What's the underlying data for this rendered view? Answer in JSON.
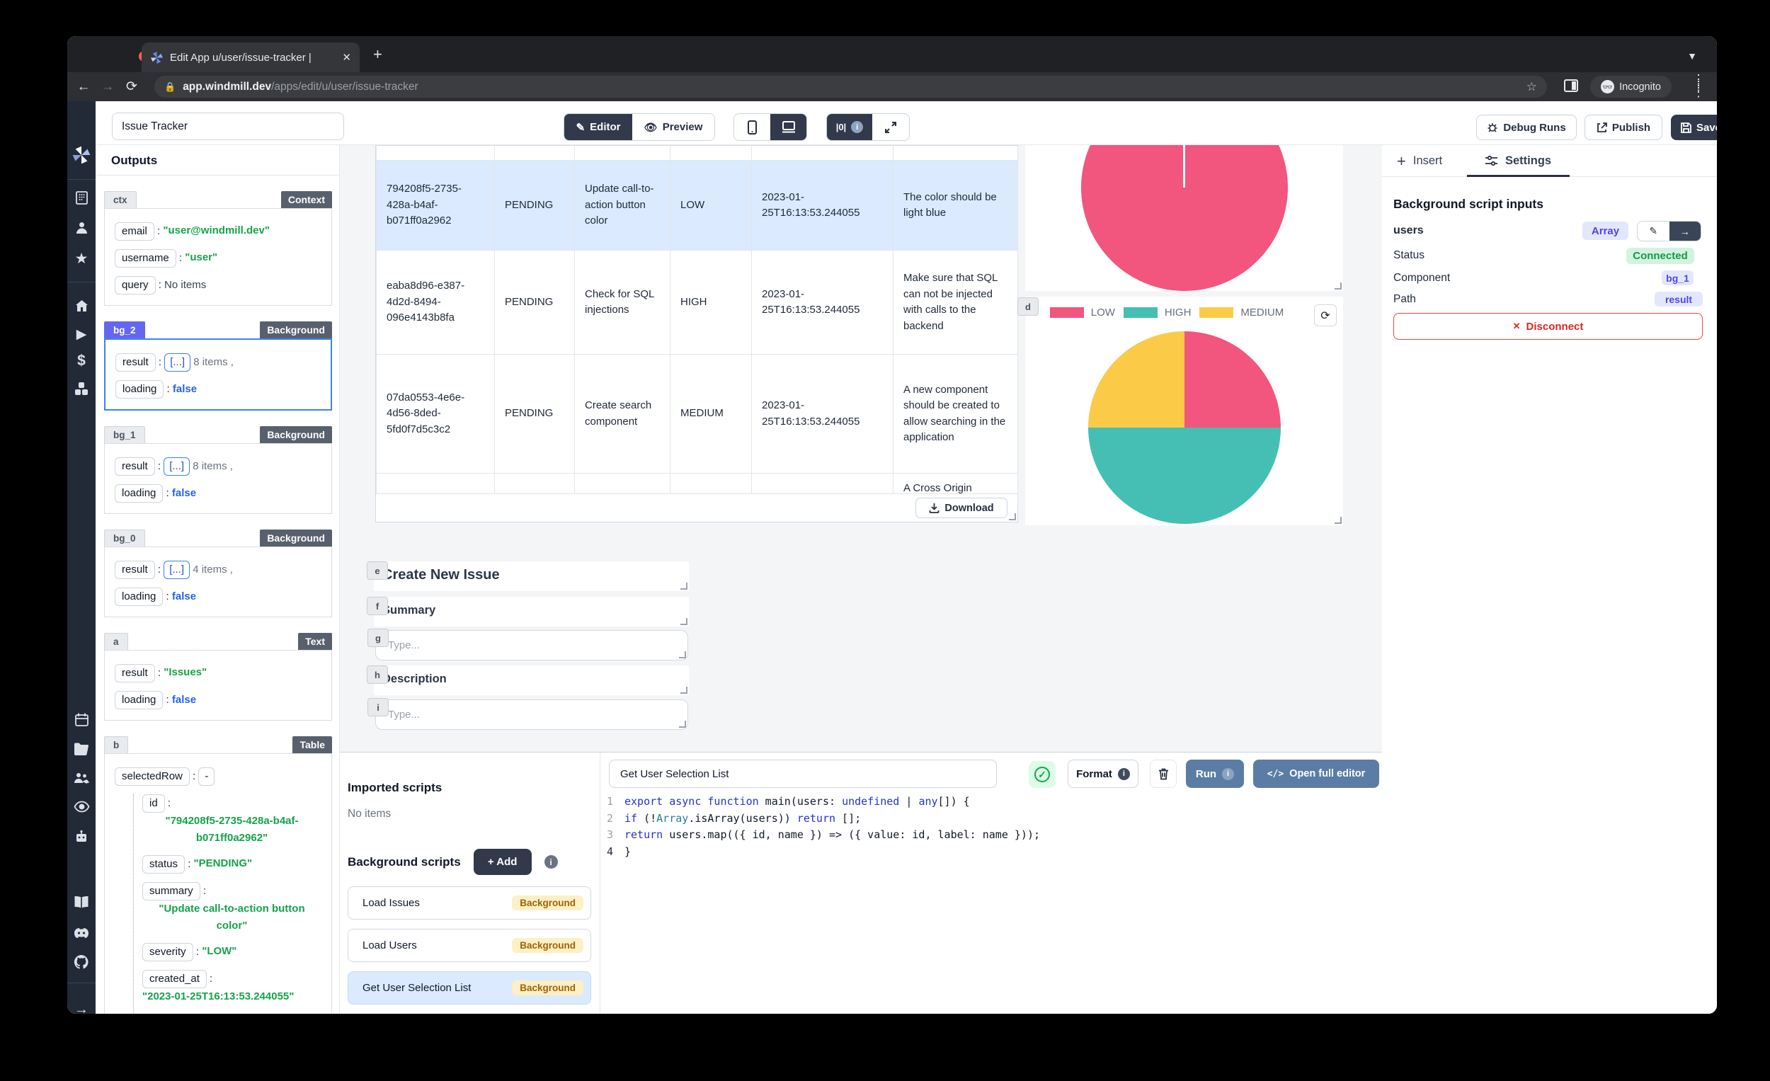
{
  "browser": {
    "tab_title": "Edit App u/user/issue-tracker |",
    "url_host": "app.windmill.dev",
    "url_path": "/apps/edit/u/user/issue-tracker",
    "incognito_label": "Incognito"
  },
  "header": {
    "app_name": "Issue Tracker",
    "editor_label": "Editor",
    "preview_label": "Preview",
    "zero_label": "|0|",
    "debug_runs_label": "Debug Runs",
    "publish_label": "Publish",
    "save_label": "Save"
  },
  "outputs": {
    "title": "Outputs",
    "sections": [
      {
        "id": "ctx",
        "idStyle": "gray",
        "type": "Context",
        "selected": false,
        "rows": [
          {
            "key": "email",
            "kind": "string",
            "value": "\"user@windmill.dev\""
          },
          {
            "key": "username",
            "kind": "string",
            "value": "\"user\""
          },
          {
            "key": "query",
            "kind": "plain",
            "value": "No items"
          }
        ]
      },
      {
        "id": "bg_2",
        "idStyle": "indigo",
        "type": "Background",
        "selected": true,
        "rows": [
          {
            "key": "result",
            "kind": "array",
            "value": "8 items ,"
          },
          {
            "key": "loading",
            "kind": "bool",
            "value": "false"
          }
        ]
      },
      {
        "id": "bg_1",
        "idStyle": "gray",
        "type": "Background",
        "selected": false,
        "rows": [
          {
            "key": "result",
            "kind": "array",
            "value": "8 items ,"
          },
          {
            "key": "loading",
            "kind": "bool",
            "value": "false"
          }
        ]
      },
      {
        "id": "bg_0",
        "idStyle": "gray",
        "type": "Background",
        "selected": false,
        "rows": [
          {
            "key": "result",
            "kind": "array",
            "value": "4 items ,"
          },
          {
            "key": "loading",
            "kind": "bool",
            "value": "false"
          }
        ]
      },
      {
        "id": "a",
        "idStyle": "gray",
        "type": "Text",
        "selected": false,
        "rows": [
          {
            "key": "result",
            "kind": "string",
            "value": "\"Issues\""
          },
          {
            "key": "loading",
            "kind": "bool",
            "value": "false"
          }
        ]
      },
      {
        "id": "b",
        "idStyle": "gray",
        "type": "Table",
        "selected": false,
        "rows": [
          {
            "key": "selectedRow",
            "kind": "dash",
            "value": "-",
            "children": [
              {
                "key": "id",
                "kind": "string",
                "value": "\"794208f5-2735-428a-b4af-b071ff0a2962\""
              },
              {
                "key": "status",
                "kind": "string",
                "value": "\"PENDING\""
              },
              {
                "key": "summary",
                "kind": "string",
                "value": "\"Update call-to-action button color\""
              },
              {
                "key": "severity",
                "kind": "string",
                "value": "\"LOW\""
              },
              {
                "key": "created_at",
                "kind": "string",
                "value": "\"2023-01-25T16:13:53.244055\""
              },
              {
                "key": "description",
                "kind": "string",
                "value": "\"The color should be light blue\""
              }
            ]
          },
          {
            "key": "loading",
            "kind": "bool",
            "value": "false"
          }
        ]
      }
    ]
  },
  "issues_table": {
    "rows": [
      {
        "id": "794208f5-2735-428a-b4af-b071ff0a2962",
        "status": "PENDING",
        "summary": "Update call-to-action button color",
        "severity": "LOW",
        "created_at": "2023-01-25T16:13:53.244055",
        "description": "The color should be light blue",
        "selected": true
      },
      {
        "id": "eaba8d96-e387-4d2d-8494-096e4143b8fa",
        "status": "PENDING",
        "summary": "Check for SQL injections",
        "severity": "HIGH",
        "created_at": "2023-01-25T16:13:53.244055",
        "description": "Make sure that SQL can not be injected with calls to the backend",
        "selected": false
      },
      {
        "id": "07da0553-4e6e-4d56-8ded-5fd0f7d5c3c2",
        "status": "PENDING",
        "summary": "Create search component",
        "severity": "MEDIUM",
        "created_at": "2023-01-25T16:13:53.244055",
        "description": "A new component should be created to allow searching in the application",
        "selected": false
      },
      {
        "id": "",
        "status": "",
        "summary": "",
        "severity": "",
        "created_at": "",
        "description": "A Cross Origin",
        "selected": false
      }
    ],
    "download_label": "Download"
  },
  "chart_data": [
    {
      "type": "pie",
      "title": "",
      "categories": [
        "LOW"
      ],
      "values": [
        100
      ],
      "colors": [
        "#f2557e"
      ],
      "legend": "hidden"
    },
    {
      "type": "pie",
      "title": "",
      "categories": [
        "LOW",
        "HIGH",
        "MEDIUM"
      ],
      "values": [
        25,
        50,
        25
      ],
      "colors": [
        "#f2557e",
        "#45bfb4",
        "#fbcb47"
      ],
      "legend": "top"
    }
  ],
  "form": {
    "title": "Create New Issue",
    "summary_label": "Summary",
    "summary_placeholder": "Type...",
    "description_label": "Description",
    "description_placeholder": "Type..."
  },
  "scripts_panel": {
    "imported_title": "Imported scripts",
    "imported_empty": "No items",
    "background_title": "Background scripts",
    "add_label": "+ Add",
    "items": [
      {
        "name": "Load Issues",
        "badge": "Background",
        "selected": false
      },
      {
        "name": "Load Users",
        "badge": "Background",
        "selected": false
      },
      {
        "name": "Get User Selection List",
        "badge": "Background",
        "selected": true
      }
    ]
  },
  "editor": {
    "name_value": "Get User Selection List",
    "format_label": "Format",
    "run_label": "Run",
    "full_editor_label": "Open full editor",
    "code_lines": [
      [
        [
          "k",
          "export"
        ],
        [
          "p",
          " "
        ],
        [
          "k",
          "async"
        ],
        [
          "p",
          " "
        ],
        [
          "k",
          "function"
        ],
        [
          "p",
          " main("
        ],
        [
          "p",
          "users"
        ],
        [
          "p",
          ": "
        ],
        [
          "k",
          "undefined"
        ],
        [
          "p",
          " | "
        ],
        [
          "k",
          "any"
        ],
        [
          "p",
          "[]) {"
        ]
      ],
      [
        [
          "p",
          "  "
        ],
        [
          "k",
          "if"
        ],
        [
          "p",
          " (!"
        ],
        [
          "t",
          "Array"
        ],
        [
          "p",
          ".isArray(users)) "
        ],
        [
          "k",
          "return"
        ],
        [
          "p",
          " [];"
        ]
      ],
      [
        [
          "p",
          "  "
        ],
        [
          "k",
          "return"
        ],
        [
          "p",
          " users.map(({ id, name }) => ({ value: id, label: name }));"
        ]
      ],
      [
        [
          "p",
          "}"
        ]
      ]
    ]
  },
  "settings_panel": {
    "insert_tab": "Insert",
    "settings_tab": "Settings",
    "heading": "Background script inputs",
    "input_name": "users",
    "input_type": "Array",
    "status_label": "Status",
    "status_value": "Connected",
    "component_label": "Component",
    "component_value": "bg_1",
    "path_label": "Path",
    "path_value": "result",
    "disconnect_label": "Disconnect"
  },
  "colors": {
    "pink": "#f2557e",
    "teal": "#45bfb4",
    "yellow": "#fbcb47"
  }
}
